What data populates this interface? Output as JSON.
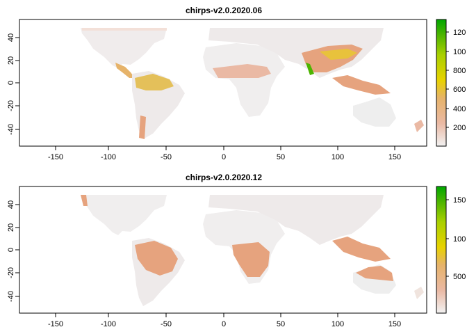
{
  "maps": [
    {
      "title": "chirps-v2.0.2020.06",
      "x_ticks": [
        "-150",
        "-100",
        "-50",
        "0",
        "50",
        "100",
        "150"
      ],
      "y_ticks": [
        "40",
        "20",
        "0",
        "-20",
        "-40"
      ],
      "legend_ticks": [
        "120",
        "100",
        "800",
        "600",
        "400",
        "200"
      ]
    },
    {
      "title": "chirps-v2.0.2020.12",
      "x_ticks": [
        "-150",
        "-100",
        "-50",
        "0",
        "50",
        "100",
        "150"
      ],
      "y_ticks": [
        "40",
        "20",
        "0",
        "-20",
        "-40"
      ],
      "legend_ticks": [
        "150",
        "100",
        "500"
      ]
    }
  ],
  "colors": {
    "background": "#f2f2f2",
    "land_low": "#f2f2f2",
    "rain_light": "#eab9a4",
    "rain_mid": "#e6a37e",
    "rain_high": "#e8c23c",
    "rain_max": "#2aa11f"
  }
}
